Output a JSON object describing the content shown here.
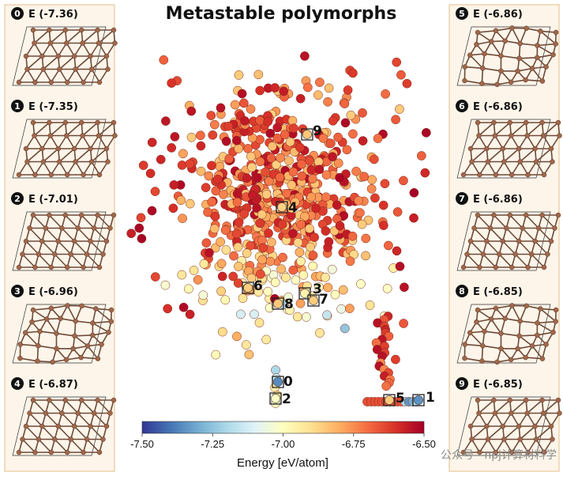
{
  "title": "Metastable polymorphs",
  "watermark": "公众号 · npj计算材料学",
  "colors": {
    "panel_border": "#e8c79a",
    "panel_fill": "#fdf5ea",
    "atom": "#a0674a",
    "bond": "#6e4a38",
    "highlight_box": "#222222"
  },
  "panels_left": [
    {
      "index": "0",
      "energy_label": "E (-7.36)",
      "icon": "hexagonal-lattice-structure"
    },
    {
      "index": "1",
      "energy_label": "E (-7.35)",
      "icon": "hexagonal-lattice-structure"
    },
    {
      "index": "2",
      "energy_label": "E (-7.01)",
      "icon": "square-octagon-lattice-structure"
    },
    {
      "index": "3",
      "energy_label": "E (-6.96)",
      "icon": "pentagon-heptagon-lattice-structure"
    },
    {
      "index": "4",
      "energy_label": "E (-6.87)",
      "icon": "layered-lattice-structure"
    }
  ],
  "panels_right": [
    {
      "index": "5",
      "energy_label": "E (-6.86)",
      "icon": "pentagon-heptagon-lattice-structure"
    },
    {
      "index": "6",
      "energy_label": "E (-6.86)",
      "icon": "hexagonal-lattice-structure"
    },
    {
      "index": "7",
      "energy_label": "E (-6.86)",
      "icon": "square-lattice-structure"
    },
    {
      "index": "8",
      "energy_label": "E (-6.85)",
      "icon": "pentagon-heptagon-lattice-structure"
    },
    {
      "index": "9",
      "energy_label": "E (-6.85)",
      "icon": "hexagonal-lattice-structure"
    }
  ],
  "chart_data": {
    "type": "scatter",
    "title": "Metastable polymorphs",
    "colorbar": {
      "label": "Energy [eV/atom]",
      "range": [
        -7.5,
        -6.5
      ],
      "ticks": [
        "-7.50",
        "-7.25",
        "-7.00",
        "-6.75",
        "-6.50"
      ],
      "colormap": "RdYlBu_r"
    },
    "annotations": [
      {
        "label": "0",
        "energy": -7.36
      },
      {
        "label": "1",
        "energy": -7.35
      },
      {
        "label": "2",
        "energy": -7.01
      },
      {
        "label": "3",
        "energy": -6.96
      },
      {
        "label": "4",
        "energy": -6.87
      },
      {
        "label": "5",
        "energy": -6.86
      },
      {
        "label": "6",
        "energy": -6.86
      },
      {
        "label": "7",
        "energy": -6.86
      },
      {
        "label": "8",
        "energy": -6.85
      },
      {
        "label": "9",
        "energy": -6.85
      }
    ],
    "grid": false,
    "axes_visible": false
  }
}
